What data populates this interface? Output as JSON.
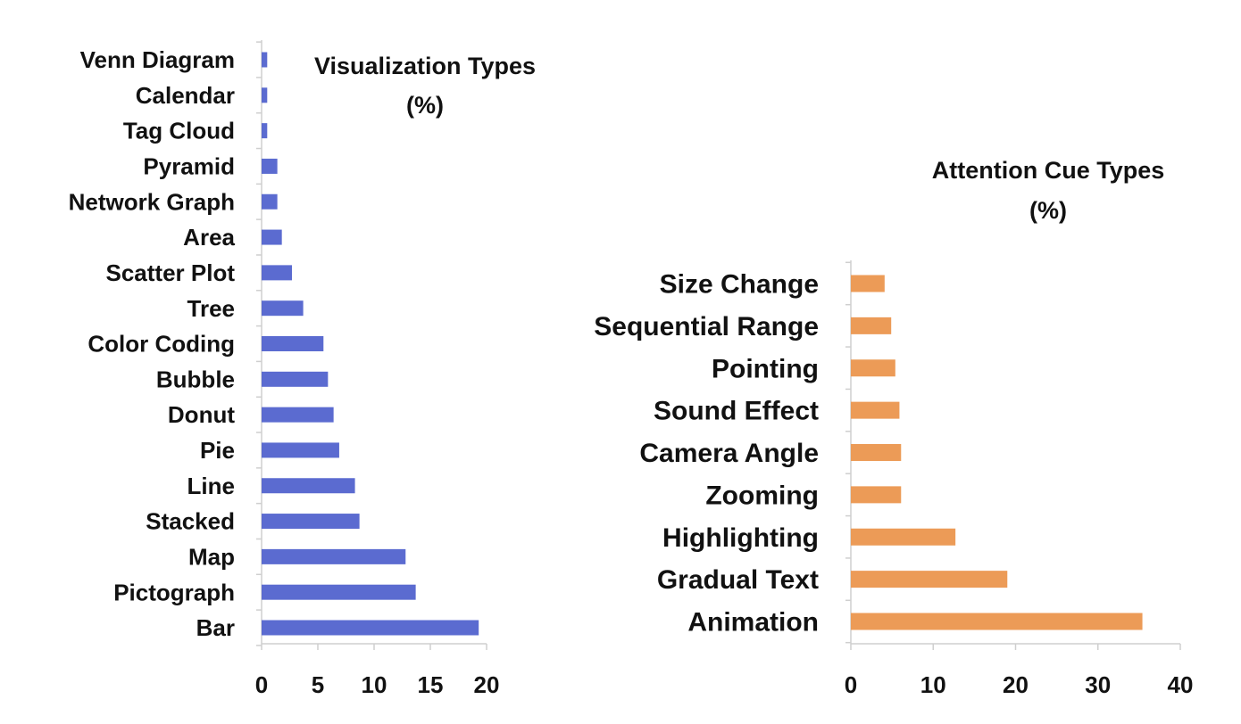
{
  "chart_data": [
    {
      "type": "bar",
      "orientation": "horizontal",
      "title": [
        "Visualization Types",
        "(%)"
      ],
      "categories": [
        "Venn Diagram",
        "Calendar",
        "Tag Cloud",
        "Pyramid",
        "Network Graph",
        "Area",
        "Scatter Plot",
        "Tree",
        "Color Coding",
        "Bubble",
        "Donut",
        "Pie",
        "Line",
        "Stacked",
        "Map",
        "Pictograph",
        "Bar"
      ],
      "values": [
        0.5,
        0.5,
        0.5,
        1.4,
        1.4,
        1.8,
        2.7,
        3.7,
        5.5,
        5.9,
        6.4,
        6.9,
        8.3,
        8.7,
        12.8,
        13.7,
        19.3
      ],
      "xlim": [
        0,
        20
      ],
      "xticks": [
        "0",
        "5",
        "10",
        "15",
        "20"
      ],
      "color": "#5b6bd0",
      "grid": false
    },
    {
      "type": "bar",
      "orientation": "horizontal",
      "title": [
        "Attention Cue Types",
        "(%)"
      ],
      "categories": [
        "Size Change",
        "Sequential Range",
        "Pointing",
        "Sound Effect",
        "Camera Angle",
        "Zooming",
        "Highlighting",
        "Gradual Text",
        "Animation"
      ],
      "values": [
        4.1,
        4.9,
        5.4,
        5.9,
        6.1,
        6.1,
        12.7,
        19.0,
        35.4
      ],
      "xlim": [
        0,
        40
      ],
      "xticks": [
        "0",
        "10",
        "20",
        "30",
        "40"
      ],
      "color": "#ec9b57",
      "grid": false
    }
  ]
}
